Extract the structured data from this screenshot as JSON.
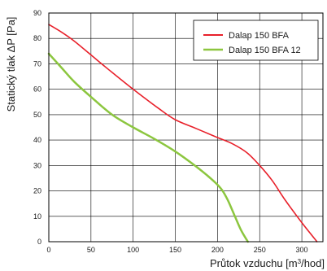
{
  "chart_data": {
    "type": "line",
    "ylabel": "Statický tlak  ΔP [Pa]",
    "xlabel_main": "Průtok vzduchu [m",
    "xlabel_sup": "3",
    "xlabel_tail": "/hod]",
    "xlim": [
      0,
      325
    ],
    "ylim": [
      0,
      90
    ],
    "xticks": [
      0,
      50,
      100,
      150,
      200,
      250,
      300
    ],
    "yticks": [
      0,
      10,
      20,
      30,
      40,
      50,
      60,
      70,
      80,
      90
    ],
    "grid": true,
    "legend_position": "top-right",
    "series": [
      {
        "name": "Dalap 150 BFA",
        "color": "#e8202a",
        "x": [
          0,
          15,
          30,
          50,
          70,
          100,
          130,
          150,
          175,
          200,
          218,
          235,
          250,
          265,
          280,
          300,
          318
        ],
        "y": [
          85.5,
          82.5,
          79,
          73.5,
          68,
          60,
          52.5,
          48,
          44.5,
          41,
          38.5,
          35,
          30,
          24,
          16.5,
          7.5,
          0
        ]
      },
      {
        "name": "Dalap 150 BFA 12",
        "color": "#8cc63f",
        "x": [
          0,
          15,
          30,
          50,
          75,
          100,
          125,
          150,
          175,
          195,
          205,
          212,
          220,
          228,
          236
        ],
        "y": [
          74,
          68.5,
          63,
          57,
          50,
          45,
          40.5,
          35.5,
          29.5,
          24,
          20.5,
          16.5,
          10.5,
          4.5,
          0
        ]
      }
    ]
  }
}
